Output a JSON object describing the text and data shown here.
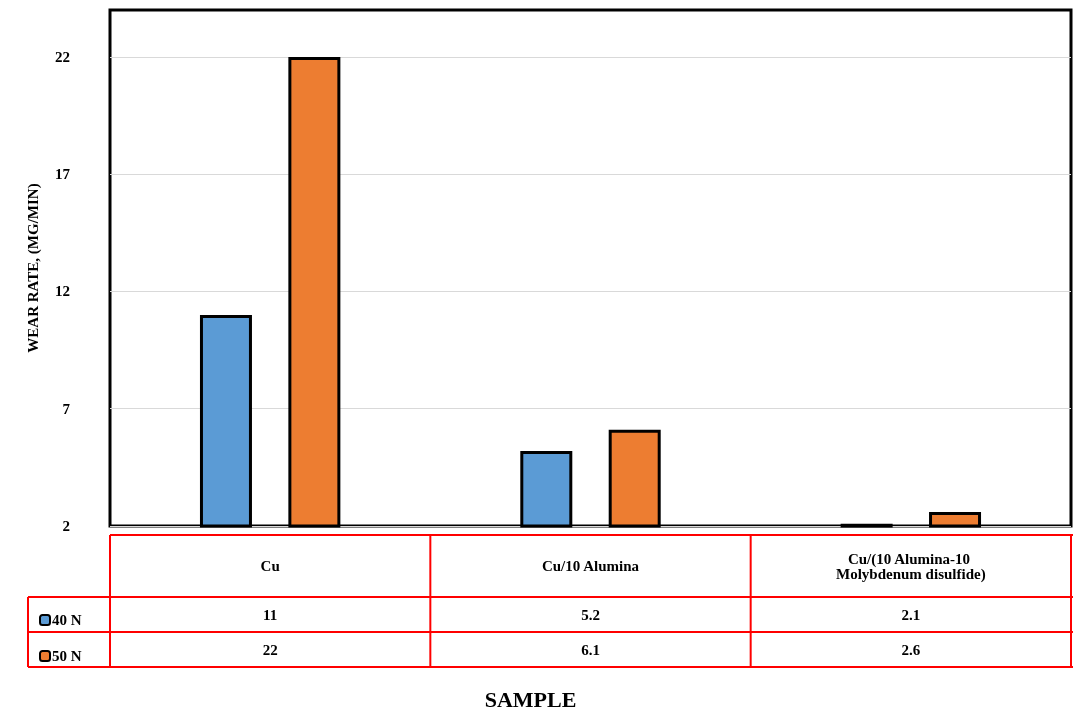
{
  "chart_data": {
    "type": "bar",
    "xlabel": "SAMPLE",
    "ylabel": "WEAR RATE, (MG/MIN)",
    "categories": [
      "Cu",
      "Cu/10 Alumina",
      "Cu/(10 Alumina-10 Molybdenum disulfide)"
    ],
    "series": [
      {
        "name": "40 N",
        "color": "#5b9bd5",
        "values": [
          11,
          5.2,
          2.1
        ]
      },
      {
        "name": "50 N",
        "color": "#ed7d31",
        "values": [
          22,
          6.1,
          2.6
        ]
      }
    ],
    "ylim": [
      2,
      24
    ],
    "yticks": [
      2,
      7,
      12,
      17,
      22
    ],
    "grid": "y",
    "legend": "bottom left",
    "data_labels": true
  }
}
